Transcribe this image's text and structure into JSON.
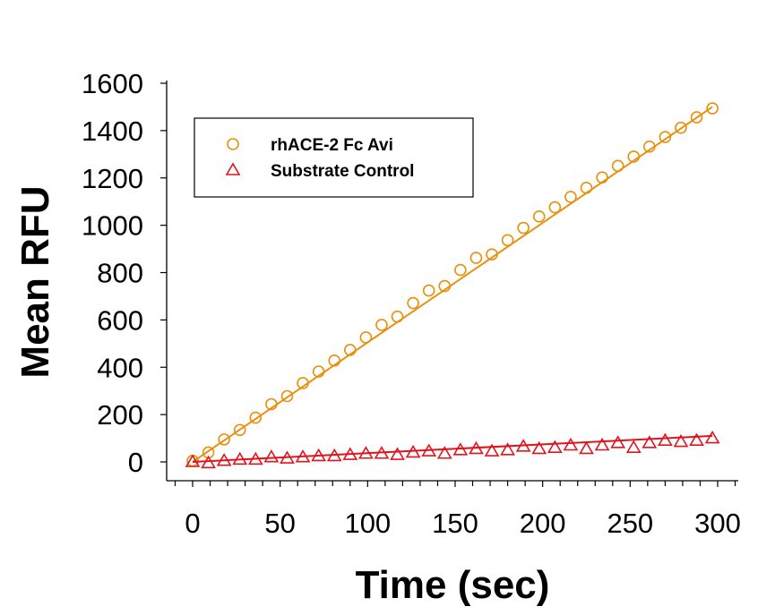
{
  "chart_data": {
    "type": "scatter",
    "title": "",
    "xlabel": "Time (sec)",
    "ylabel": "Mean RFU",
    "xlim": [
      -10,
      310
    ],
    "ylim": [
      0,
      1600
    ],
    "xticks": [
      "0",
      "50",
      "100",
      "150",
      "200",
      "250",
      "300"
    ],
    "yticks": [
      "0",
      "200",
      "400",
      "600",
      "800",
      "1000",
      "1200",
      "1400",
      "1600"
    ],
    "grid": false,
    "legend_position": "top-left",
    "x": [
      0,
      9,
      18,
      27,
      36,
      45,
      54,
      63,
      72,
      81,
      90,
      99,
      108,
      117,
      126,
      135,
      144,
      153,
      162,
      171,
      180,
      189,
      198,
      207,
      216,
      225,
      234,
      243,
      252,
      261,
      270,
      279,
      288,
      297
    ],
    "series": [
      {
        "name": "rhACE-2 Fc Avi",
        "marker": "circle",
        "color": "#E8900C",
        "values": [
          5,
          40,
          95,
          135,
          187,
          244,
          278,
          333,
          382,
          428,
          473,
          526,
          579,
          614,
          671,
          724,
          743,
          811,
          862,
          877,
          937,
          989,
          1037,
          1076,
          1120,
          1158,
          1202,
          1251,
          1290,
          1332,
          1373,
          1412,
          1456,
          1494
        ],
        "fit": [
          0,
          1500
        ]
      },
      {
        "name": "Substrate Control",
        "marker": "triangle",
        "color": "#E0141E",
        "values": [
          0,
          -5,
          5,
          10,
          10,
          20,
          15,
          20,
          25,
          25,
          30,
          35,
          35,
          30,
          40,
          45,
          35,
          50,
          55,
          45,
          50,
          65,
          55,
          60,
          70,
          55,
          70,
          80,
          60,
          80,
          90,
          85,
          90,
          100
        ],
        "fit": [
          0,
          110
        ]
      }
    ]
  }
}
